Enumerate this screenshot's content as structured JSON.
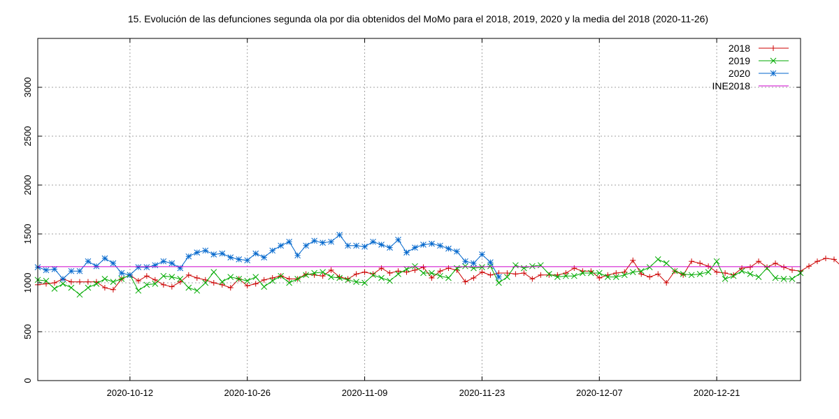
{
  "chart_data": {
    "type": "line",
    "title": "15. Evolución de las defunciones segunda ola por dia obtenidos del MoMo para el 2018, 2019, 2020 y la media del 2018 (2020-11-26)",
    "xlabel": "",
    "ylabel": "",
    "x_start": "2020-10-01",
    "x_tick_labels": [
      "2020-10-12",
      "2020-10-26",
      "2020-11-09",
      "2020-11-23",
      "2020-12-07",
      "2020-12-21"
    ],
    "y_ticks": [
      0,
      500,
      1000,
      1500,
      2000,
      2500,
      3000
    ],
    "xlim": [
      "2020-10-01",
      "2020-12-31"
    ],
    "ylim": [
      0,
      3500
    ],
    "grid": true,
    "legend_position": "top-right",
    "series": [
      {
        "name": "2018",
        "color": "#cc0000",
        "marker": "plus",
        "values": [
          980,
          990,
          1000,
          1040,
          1010,
          1010,
          1010,
          1010,
          950,
          930,
          1040,
          1080,
          1020,
          1070,
          1030,
          980,
          960,
          1010,
          1080,
          1050,
          1030,
          1000,
          980,
          950,
          1040,
          970,
          990,
          1030,
          1050,
          1070,
          1040,
          1040,
          1090,
          1080,
          1070,
          1130,
          1060,
          1040,
          1090,
          1110,
          1090,
          1150,
          1100,
          1120,
          1110,
          1130,
          1160,
          1050,
          1120,
          1150,
          1130,
          1010,
          1050,
          1110,
          1080,
          1100,
          1100,
          1090,
          1100,
          1040,
          1080,
          1080,
          1080,
          1100,
          1150,
          1120,
          1120,
          1050,
          1080,
          1100,
          1110,
          1230,
          1090,
          1060,
          1090,
          1000,
          1120,
          1080,
          1220,
          1200,
          1170,
          1110,
          1100,
          1080,
          1150,
          1160,
          1220,
          1160,
          1200,
          1160,
          1130,
          1120,
          1170,
          1220,
          1250,
          1240,
          1160,
          1110
        ]
      },
      {
        "name": "2019",
        "color": "#00aa00",
        "marker": "x",
        "values": [
          1030,
          1020,
          940,
          990,
          950,
          880,
          950,
          990,
          1040,
          1010,
          1040,
          1080,
          920,
          980,
          990,
          1070,
          1060,
          1040,
          950,
          920,
          1000,
          1110,
          1010,
          1060,
          1040,
          1020,
          1060,
          960,
          1020,
          1070,
          1000,
          1040,
          1080,
          1100,
          1110,
          1060,
          1050,
          1030,
          1010,
          1000,
          1080,
          1050,
          1020,
          1090,
          1140,
          1170,
          1100,
          1100,
          1070,
          1050,
          1150,
          1170,
          1150,
          1160,
          1170,
          1000,
          1060,
          1180,
          1150,
          1170,
          1180,
          1090,
          1060,
          1070,
          1070,
          1100,
          1100,
          1100,
          1060,
          1060,
          1080,
          1110,
          1120,
          1160,
          1240,
          1200,
          1120,
          1090,
          1080,
          1090,
          1110,
          1220,
          1040,
          1070,
          1120,
          1090,
          1060,
          1150,
          1050,
          1040,
          1040,
          1100
        ]
      },
      {
        "name": "2020",
        "color": "#0066cc",
        "marker": "star",
        "values": [
          1160,
          1130,
          1140,
          1040,
          1120,
          1120,
          1220,
          1170,
          1250,
          1200,
          1100,
          1080,
          1160,
          1160,
          1180,
          1220,
          1200,
          1150,
          1270,
          1310,
          1330,
          1290,
          1300,
          1260,
          1240,
          1230,
          1300,
          1260,
          1330,
          1380,
          1420,
          1280,
          1380,
          1430,
          1410,
          1420,
          1490,
          1380,
          1380,
          1370,
          1420,
          1390,
          1360,
          1440,
          1310,
          1360,
          1390,
          1400,
          1380,
          1350,
          1320,
          1220,
          1200,
          1290,
          1210,
          1060
        ]
      },
      {
        "name": "INE2018",
        "color": "#cc00cc",
        "marker": "none",
        "values": [
          1165,
          1165
        ]
      }
    ]
  }
}
